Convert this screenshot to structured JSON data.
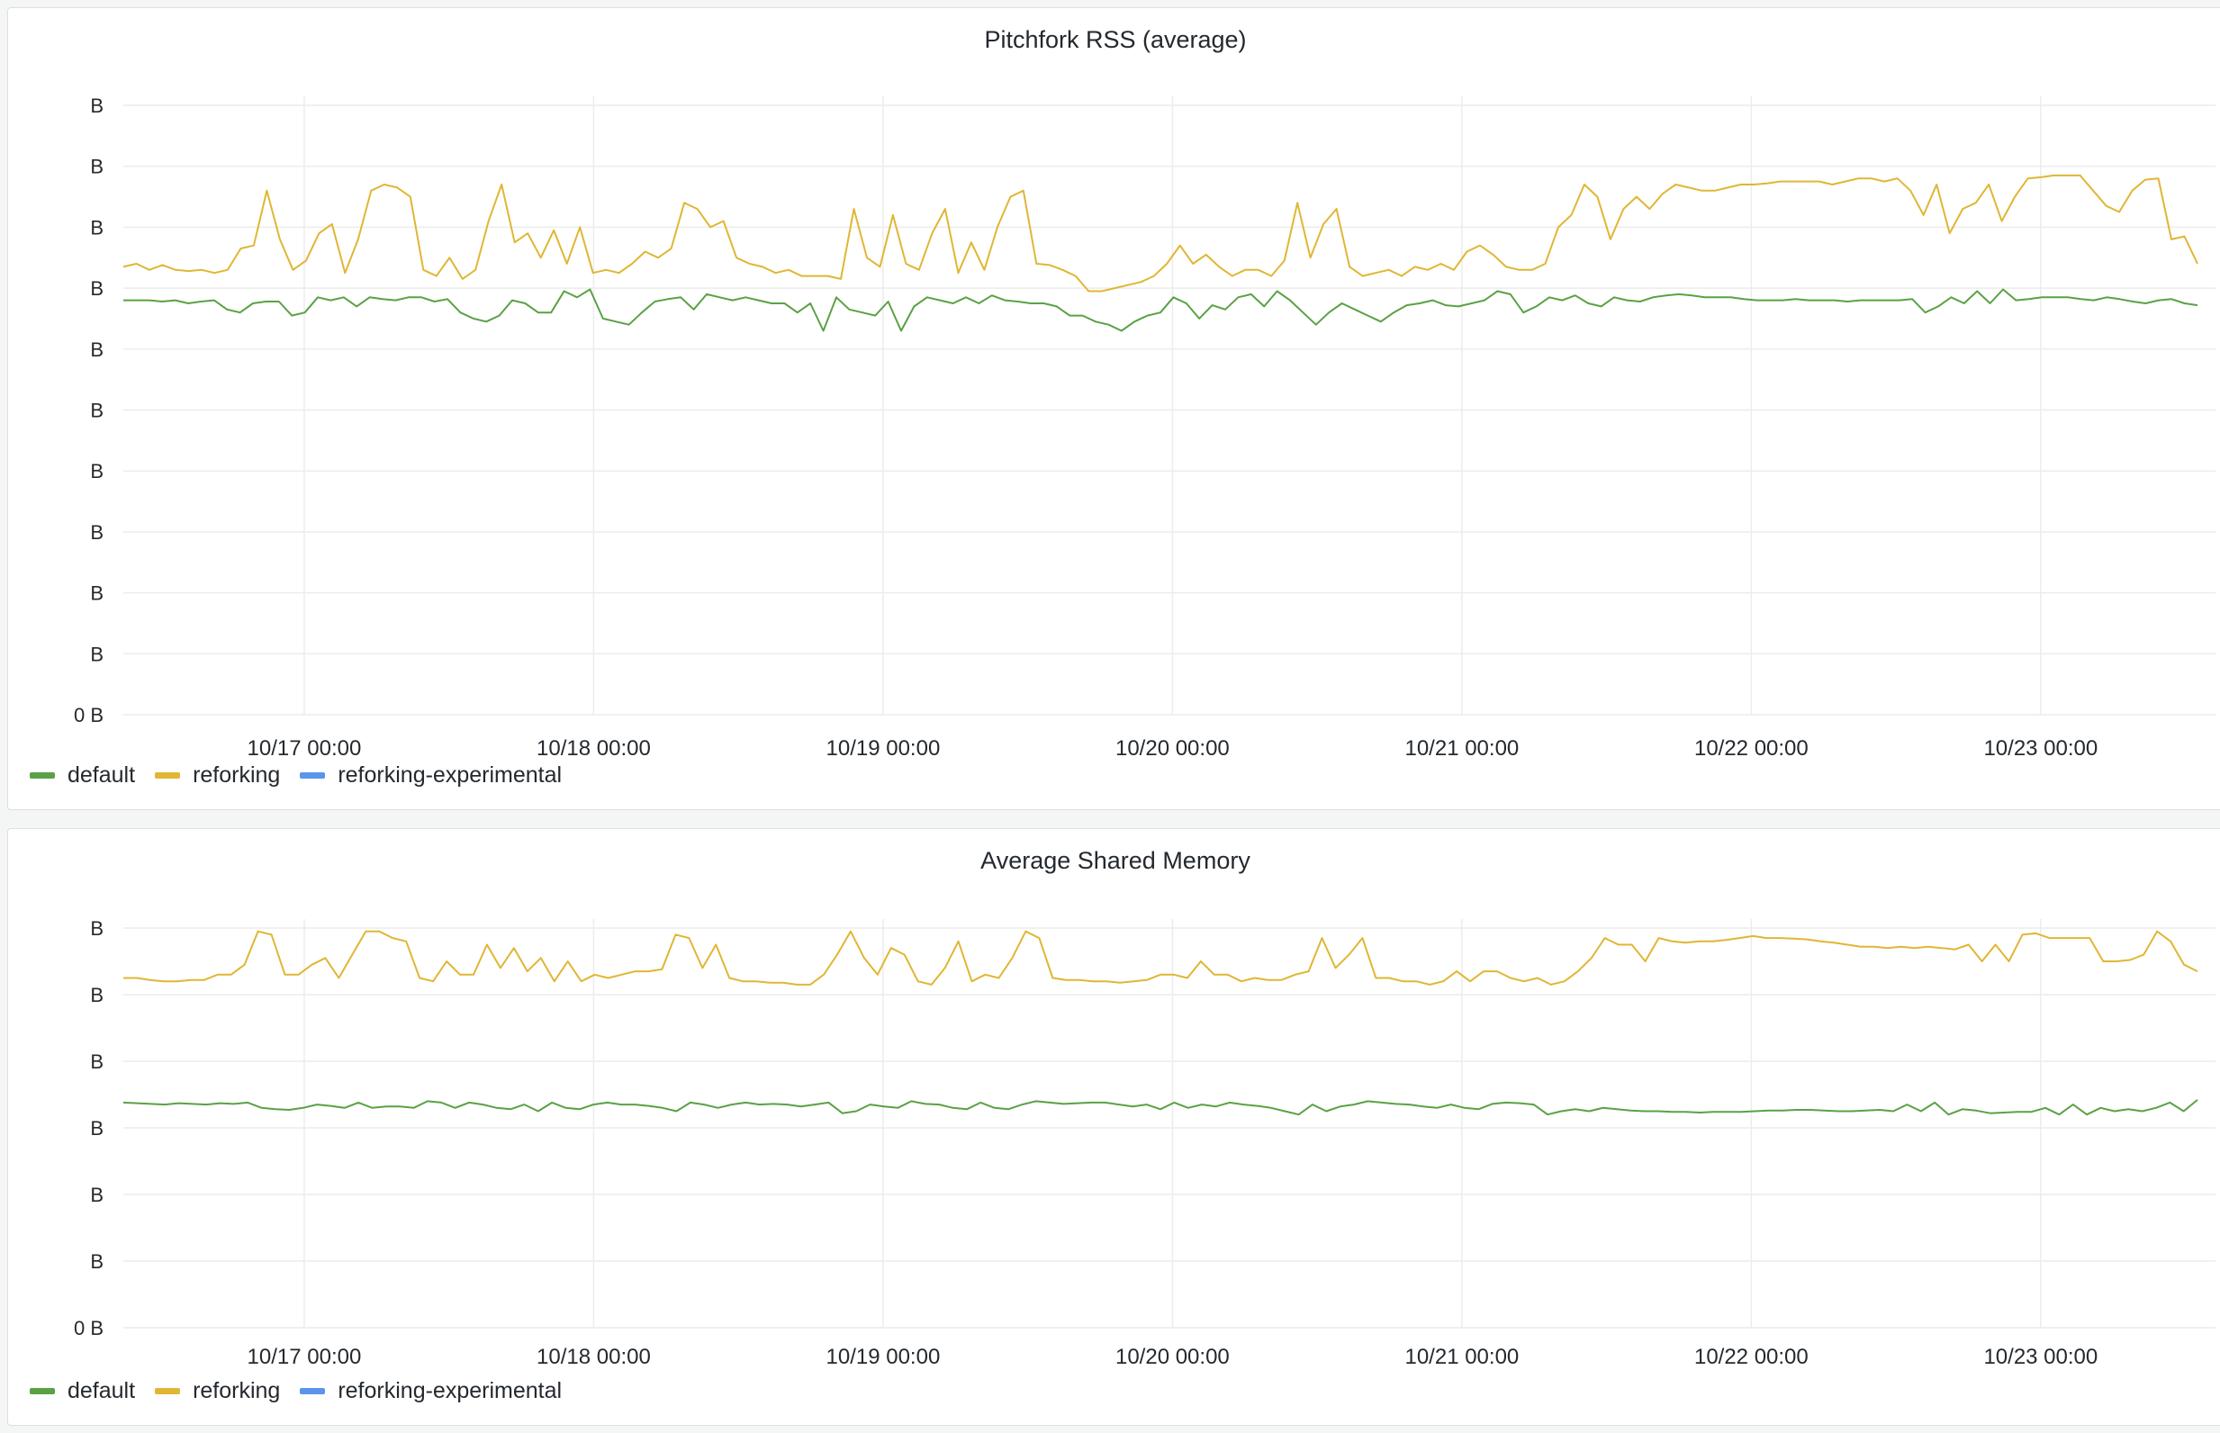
{
  "colors": {
    "default": "#5aa145",
    "reforking": "#e0b634",
    "reforking-experimental": "#5b94ea",
    "grid": "#ececec"
  },
  "chart_data": [
    {
      "type": "line",
      "title": "Pitchfork RSS (average)",
      "xlabel": "",
      "ylabel": "",
      "x_range": [
        "10/16 09:00",
        "10/23 13:00"
      ],
      "y_range": [
        0,
        10
      ],
      "y_tick_labels": [
        "0 B",
        "B",
        "B",
        "B",
        "B",
        "B",
        "B",
        "B",
        "B",
        "B",
        "B"
      ],
      "x_tick_labels": [
        "10/17 00:00",
        "10/18 00:00",
        "10/19 00:00",
        "10/20 00:00",
        "10/21 00:00",
        "10/22 00:00",
        "10/23 00:00"
      ],
      "grid": true,
      "legend": "bottom-left",
      "series": [
        {
          "name": "default",
          "values": [
            6.8,
            6.8,
            6.8,
            6.78,
            6.8,
            6.75,
            6.78,
            6.8,
            6.65,
            6.6,
            6.75,
            6.78,
            6.78,
            6.55,
            6.6,
            6.85,
            6.8,
            6.85,
            6.7,
            6.85,
            6.82,
            6.8,
            6.85,
            6.85,
            6.78,
            6.82,
            6.6,
            6.5,
            6.45,
            6.55,
            6.8,
            6.75,
            6.6,
            6.6,
            6.95,
            6.85,
            6.98,
            6.5,
            6.45,
            6.4,
            6.6,
            6.78,
            6.82,
            6.85,
            6.65,
            6.9,
            6.85,
            6.8,
            6.85,
            6.8,
            6.75,
            6.75,
            6.6,
            6.75,
            6.3,
            6.85,
            6.65,
            6.6,
            6.55,
            6.78,
            6.3,
            6.7,
            6.85,
            6.8,
            6.75,
            6.85,
            6.75,
            6.88,
            6.8,
            6.78,
            6.75,
            6.75,
            6.7,
            6.55,
            6.55,
            6.45,
            6.4,
            6.3,
            6.45,
            6.55,
            6.6,
            6.85,
            6.75,
            6.5,
            6.72,
            6.65,
            6.85,
            6.9,
            6.7,
            6.95,
            6.8,
            6.6,
            6.4,
            6.6,
            6.75,
            6.65,
            6.55,
            6.45,
            6.6,
            6.72,
            6.75,
            6.8,
            6.72,
            6.7,
            6.75,
            6.8,
            6.95,
            6.9,
            6.6,
            6.7,
            6.85,
            6.8,
            6.88,
            6.75,
            6.7,
            6.85,
            6.8,
            6.78,
            6.85,
            6.88,
            6.9,
            6.88,
            6.85,
            6.85,
            6.85,
            6.82,
            6.8,
            6.8,
            6.8,
            6.82,
            6.8,
            6.8,
            6.8,
            6.78,
            6.8,
            6.8,
            6.8,
            6.8,
            6.82,
            6.6,
            6.7,
            6.85,
            6.75,
            6.95,
            6.75,
            6.98,
            6.8,
            6.82,
            6.85,
            6.85,
            6.85,
            6.82,
            6.8,
            6.85,
            6.82,
            6.78,
            6.75,
            6.8,
            6.82,
            6.75,
            6.72
          ]
        },
        {
          "name": "reforking",
          "values": [
            7.35,
            7.4,
            7.3,
            7.38,
            7.3,
            7.28,
            7.3,
            7.25,
            7.3,
            7.65,
            7.7,
            8.6,
            7.8,
            7.3,
            7.45,
            7.9,
            8.05,
            7.25,
            7.8,
            8.6,
            8.7,
            8.65,
            8.5,
            7.3,
            7.2,
            7.5,
            7.15,
            7.3,
            8.1,
            8.7,
            7.75,
            7.9,
            7.5,
            7.95,
            7.4,
            8.0,
            7.25,
            7.3,
            7.25,
            7.4,
            7.6,
            7.5,
            7.65,
            8.4,
            8.3,
            8.0,
            8.1,
            7.5,
            7.4,
            7.35,
            7.25,
            7.3,
            7.2,
            7.2,
            7.2,
            7.15,
            8.3,
            7.5,
            7.35,
            8.2,
            7.4,
            7.3,
            7.9,
            8.3,
            7.25,
            7.75,
            7.3,
            8.0,
            8.5,
            8.6,
            7.4,
            7.38,
            7.3,
            7.2,
            6.95,
            6.95,
            7.0,
            7.05,
            7.1,
            7.2,
            7.4,
            7.7,
            7.4,
            7.55,
            7.35,
            7.2,
            7.3,
            7.3,
            7.2,
            7.45,
            8.4,
            7.5,
            8.05,
            8.3,
            7.35,
            7.2,
            7.25,
            7.3,
            7.2,
            7.35,
            7.3,
            7.4,
            7.3,
            7.6,
            7.7,
            7.55,
            7.35,
            7.3,
            7.3,
            7.4,
            8.0,
            8.2,
            8.7,
            8.5,
            7.8,
            8.3,
            8.5,
            8.3,
            8.55,
            8.7,
            8.65,
            8.6,
            8.6,
            8.65,
            8.7,
            8.7,
            8.72,
            8.75,
            8.75,
            8.75,
            8.75,
            8.7,
            8.75,
            8.8,
            8.8,
            8.75,
            8.8,
            8.6,
            8.2,
            8.7,
            7.9,
            8.3,
            8.4,
            8.7,
            8.1,
            8.5,
            8.8,
            8.82,
            8.85,
            8.85,
            8.85,
            8.6,
            8.35,
            8.25,
            8.6,
            8.78,
            8.8,
            7.8,
            7.85,
            7.4
          ]
        },
        {
          "name": "reforking-experimental",
          "values": []
        }
      ]
    },
    {
      "type": "line",
      "title": "Average Shared Memory",
      "xlabel": "",
      "ylabel": "",
      "x_range": [
        "10/16 09:00",
        "10/23 13:00"
      ],
      "y_range": [
        0,
        6
      ],
      "y_tick_labels": [
        "0 B",
        "B",
        "B",
        "B",
        "B",
        "B",
        "B"
      ],
      "x_tick_labels": [
        "10/17 00:00",
        "10/18 00:00",
        "10/19 00:00",
        "10/20 00:00",
        "10/21 00:00",
        "10/22 00:00",
        "10/23 00:00"
      ],
      "grid": true,
      "legend": "bottom-left",
      "series": [
        {
          "name": "default",
          "values": [
            3.38,
            3.37,
            3.36,
            3.35,
            3.37,
            3.36,
            3.35,
            3.37,
            3.36,
            3.38,
            3.3,
            3.28,
            3.27,
            3.3,
            3.35,
            3.33,
            3.3,
            3.38,
            3.3,
            3.32,
            3.32,
            3.3,
            3.4,
            3.38,
            3.3,
            3.38,
            3.35,
            3.3,
            3.28,
            3.35,
            3.25,
            3.38,
            3.3,
            3.28,
            3.35,
            3.38,
            3.35,
            3.35,
            3.33,
            3.3,
            3.25,
            3.38,
            3.35,
            3.3,
            3.35,
            3.38,
            3.35,
            3.36,
            3.35,
            3.32,
            3.35,
            3.38,
            3.22,
            3.25,
            3.35,
            3.32,
            3.3,
            3.4,
            3.36,
            3.35,
            3.3,
            3.28,
            3.38,
            3.3,
            3.28,
            3.35,
            3.4,
            3.38,
            3.36,
            3.37,
            3.38,
            3.38,
            3.35,
            3.32,
            3.35,
            3.28,
            3.38,
            3.3,
            3.35,
            3.32,
            3.38,
            3.35,
            3.33,
            3.3,
            3.25,
            3.2,
            3.35,
            3.25,
            3.32,
            3.35,
            3.4,
            3.38,
            3.36,
            3.35,
            3.32,
            3.3,
            3.35,
            3.3,
            3.28,
            3.36,
            3.38,
            3.37,
            3.35,
            3.2,
            3.25,
            3.28,
            3.25,
            3.3,
            3.28,
            3.26,
            3.25,
            3.25,
            3.24,
            3.24,
            3.23,
            3.24,
            3.24,
            3.24,
            3.25,
            3.26,
            3.26,
            3.27,
            3.27,
            3.26,
            3.25,
            3.25,
            3.26,
            3.27,
            3.25,
            3.35,
            3.25,
            3.38,
            3.2,
            3.28,
            3.26,
            3.22,
            3.23,
            3.24,
            3.24,
            3.3,
            3.2,
            3.35,
            3.2,
            3.3,
            3.25,
            3.28,
            3.25,
            3.3,
            3.38,
            3.25,
            3.42
          ]
        },
        {
          "name": "reforking",
          "values": [
            5.25,
            5.25,
            5.22,
            5.2,
            5.2,
            5.22,
            5.22,
            5.3,
            5.3,
            5.45,
            5.95,
            5.9,
            5.3,
            5.3,
            5.45,
            5.55,
            5.25,
            5.6,
            5.95,
            5.95,
            5.85,
            5.8,
            5.25,
            5.2,
            5.5,
            5.3,
            5.3,
            5.75,
            5.4,
            5.7,
            5.35,
            5.55,
            5.2,
            5.5,
            5.2,
            5.3,
            5.25,
            5.3,
            5.35,
            5.35,
            5.38,
            5.9,
            5.85,
            5.4,
            5.75,
            5.25,
            5.2,
            5.2,
            5.18,
            5.18,
            5.15,
            5.15,
            5.3,
            5.6,
            5.95,
            5.55,
            5.3,
            5.7,
            5.6,
            5.2,
            5.15,
            5.4,
            5.8,
            5.2,
            5.3,
            5.25,
            5.55,
            5.95,
            5.85,
            5.25,
            5.22,
            5.22,
            5.2,
            5.2,
            5.18,
            5.2,
            5.22,
            5.3,
            5.3,
            5.25,
            5.5,
            5.3,
            5.3,
            5.2,
            5.25,
            5.22,
            5.22,
            5.3,
            5.35,
            5.85,
            5.4,
            5.6,
            5.85,
            5.25,
            5.25,
            5.2,
            5.2,
            5.15,
            5.2,
            5.35,
            5.2,
            5.35,
            5.35,
            5.25,
            5.2,
            5.25,
            5.15,
            5.2,
            5.35,
            5.55,
            5.85,
            5.75,
            5.75,
            5.5,
            5.85,
            5.8,
            5.78,
            5.8,
            5.8,
            5.82,
            5.85,
            5.88,
            5.85,
            5.85,
            5.84,
            5.83,
            5.8,
            5.78,
            5.75,
            5.72,
            5.72,
            5.7,
            5.72,
            5.7,
            5.72,
            5.7,
            5.68,
            5.75,
            5.5,
            5.75,
            5.5,
            5.9,
            5.92,
            5.85,
            5.85,
            5.85,
            5.85,
            5.5,
            5.5,
            5.52,
            5.6,
            5.95,
            5.8,
            5.45,
            5.35
          ]
        },
        {
          "name": "reforking-experimental",
          "values": []
        }
      ]
    }
  ]
}
